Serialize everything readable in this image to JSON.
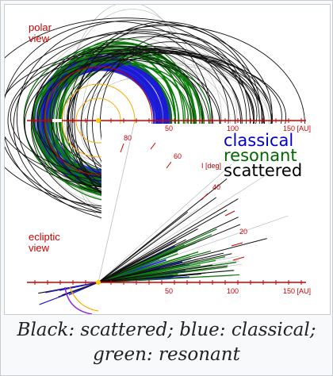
{
  "figure": {
    "polar_label_line1": "polar",
    "polar_label_line2": "view",
    "ecliptic_label_line1": "ecliptic",
    "ecliptic_label_line2": "view",
    "polar_axis_ticks": [
      "50",
      "100",
      "150 [AU]"
    ],
    "ecliptic_axis_ticks": [
      "50",
      "100",
      "150 [AU]"
    ],
    "inclination_ticks": [
      "80",
      "60",
      "I [deg]",
      "40",
      "20"
    ],
    "legend": [
      {
        "label": "classical",
        "color": "#0000cc"
      },
      {
        "label": "resonant",
        "color": "#006600"
      },
      {
        "label": "scattered",
        "color": "#000000"
      }
    ],
    "colors": {
      "axis": "#cc0000",
      "label": "#cc0000",
      "sun": "#ffcc00",
      "planet_orbit": "#cc0000",
      "outer_planet": "#ffaa00",
      "background_orbit": "#bbbbbb"
    }
  },
  "caption": "Black: scattered; blue: classical; green: resonant"
}
